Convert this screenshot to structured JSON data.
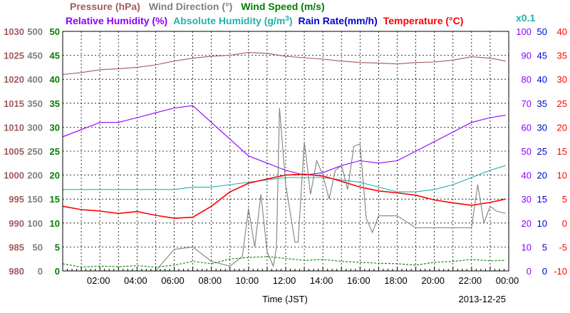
{
  "chart_data": {
    "type": "line",
    "xlabel": "Time (JST)",
    "date_label": "2013-12-25",
    "x_ticks": [
      "02:00",
      "04:00",
      "06:00",
      "08:00",
      "10:00",
      "12:00",
      "14:00",
      "16:00",
      "18:00",
      "20:00",
      "22:00",
      "00:00"
    ],
    "xlim": [
      "2013-12-25 00:00",
      "2013-12-26 00:00"
    ],
    "legend_row1": [
      {
        "text": "Pressure (hPa)",
        "color": "#a05c5c"
      },
      {
        "text": "Wind Direction (°)",
        "color": "#808080"
      },
      {
        "text": "Wind Speed (m/s)",
        "color": "#008000"
      }
    ],
    "legend_row2": [
      {
        "text": "Relative Humidity (%)",
        "color": "#8b00ff"
      },
      {
        "text": "Absolute Humidity (g/m",
        "sup": "3",
        "close": ")",
        "color": "#20b2aa"
      },
      {
        "text": "Rain Rate(mm/h)",
        "color": "#0000cd"
      },
      {
        "text": "Temperature (°C)",
        "color": "#ff0000"
      }
    ],
    "scale_note": {
      "text": "x0.1",
      "color": "#20b2aa"
    },
    "axes": {
      "pressure": {
        "ylim": [
          980,
          1030
        ],
        "ticks": [
          "1030",
          "1025",
          "1020",
          "1015",
          "1010",
          "1005",
          "1000",
          "995",
          "990",
          "985",
          "980"
        ],
        "color": "#a05c5c"
      },
      "wind_direction": {
        "ylim": [
          0,
          500
        ],
        "ticks": [
          "500",
          "450",
          "400",
          "350",
          "300",
          "250",
          "200",
          "150",
          "100",
          "50",
          "0"
        ],
        "color": "#808080"
      },
      "wind_speed": {
        "ylim": [
          0,
          50
        ],
        "ticks": [
          "50",
          "45",
          "40",
          "35",
          "30",
          "25",
          "20",
          "15",
          "10",
          "5",
          "0"
        ],
        "color": "#008000"
      },
      "relative_humidity": {
        "ylim": [
          0,
          100
        ],
        "ticks": [
          "100",
          "90",
          "80",
          "70",
          "60",
          "50",
          "40",
          "30",
          "20",
          "10",
          "0"
        ],
        "color": "#8b00ff"
      },
      "rain_rate": {
        "ylim": [
          0,
          50
        ],
        "ticks": [
          "50",
          "45",
          "40",
          "35",
          "30",
          "25",
          "20",
          "15",
          "10",
          "5",
          "0"
        ],
        "color": "#0000cd"
      },
      "temperature": {
        "ylim": [
          -10,
          40
        ],
        "ticks": [
          "40",
          "35",
          "30",
          "25",
          "20",
          "15",
          "10",
          "5",
          "0",
          "-5",
          "-10"
        ],
        "color": "#ff0000"
      }
    },
    "series": [
      {
        "name": "Pressure (hPa)",
        "axis": "pressure",
        "color": "#a05c5c",
        "style": "solid",
        "x": [
          "00:00",
          "01:00",
          "02:00",
          "03:00",
          "04:00",
          "05:00",
          "06:00",
          "07:00",
          "08:00",
          "09:00",
          "10:00",
          "11:00",
          "12:00",
          "13:00",
          "14:00",
          "15:00",
          "16:00",
          "17:00",
          "18:00",
          "19:00",
          "20:00",
          "21:00",
          "22:00",
          "23:00",
          "23:50"
        ],
        "values": [
          1021.0,
          1021.4,
          1022.0,
          1022.2,
          1022.5,
          1023.0,
          1023.8,
          1024.4,
          1024.8,
          1025.0,
          1025.6,
          1025.4,
          1024.8,
          1024.5,
          1024.2,
          1023.8,
          1023.5,
          1023.4,
          1023.2,
          1023.5,
          1023.6,
          1024.0,
          1024.7,
          1024.4,
          1023.8
        ]
      },
      {
        "name": "Relative Humidity (%)",
        "axis": "relative_humidity",
        "color": "#8b00ff",
        "style": "solid",
        "x": [
          "00:00",
          "01:00",
          "02:00",
          "03:00",
          "04:00",
          "05:00",
          "06:00",
          "07:00",
          "08:00",
          "09:00",
          "10:00",
          "11:00",
          "12:00",
          "13:00",
          "14:00",
          "15:00",
          "16:00",
          "17:00",
          "18:00",
          "19:00",
          "20:00",
          "21:00",
          "22:00",
          "23:00",
          "23:50"
        ],
        "values": [
          56,
          59,
          62,
          62,
          64,
          66,
          68,
          69,
          62,
          55,
          48,
          45,
          42,
          40,
          41,
          44,
          46,
          45,
          46,
          50,
          54,
          58,
          62,
          64,
          65
        ]
      },
      {
        "name": "Absolute Humidity",
        "axis": "relative_humidity",
        "color": "#20b2aa",
        "style": "solid",
        "x": [
          "00:00",
          "01:00",
          "02:00",
          "03:00",
          "04:00",
          "05:00",
          "06:00",
          "07:00",
          "08:00",
          "09:00",
          "10:00",
          "11:00",
          "12:00",
          "13:00",
          "14:00",
          "15:00",
          "16:00",
          "17:00",
          "18:00",
          "19:00",
          "20:00",
          "21:00",
          "22:00",
          "23:00",
          "23:50"
        ],
        "values": [
          34,
          34,
          34,
          34,
          34,
          34,
          34,
          35,
          35,
          36,
          37,
          38,
          39,
          39,
          39,
          38,
          37,
          35,
          33,
          33,
          34,
          36,
          39,
          42,
          44
        ]
      },
      {
        "name": "Temperature (°C)",
        "axis": "temperature",
        "color": "#ff0000",
        "style": "solid",
        "x": [
          "00:00",
          "01:00",
          "02:00",
          "03:00",
          "04:00",
          "05:00",
          "06:00",
          "07:00",
          "08:00",
          "09:00",
          "10:00",
          "11:00",
          "12:00",
          "13:00",
          "14:00",
          "15:00",
          "16:00",
          "17:00",
          "18:00",
          "19:00",
          "20:00",
          "21:00",
          "22:00",
          "23:00",
          "23:50"
        ],
        "values": [
          3.5,
          2.8,
          2.5,
          2.0,
          2.4,
          1.6,
          1.0,
          1.2,
          3.5,
          6.5,
          8.3,
          9.2,
          10.0,
          10.2,
          9.8,
          8.7,
          7.5,
          6.7,
          6.3,
          5.8,
          4.8,
          4.2,
          3.7,
          4.3,
          5.0
        ]
      },
      {
        "name": "Wind Direction (°)",
        "axis": "wind_direction",
        "color": "#808080",
        "style": "solid",
        "x": [
          "00:00",
          "01:00",
          "02:00",
          "03:00",
          "04:00",
          "05:00",
          "06:00",
          "07:00",
          "08:00",
          "09:00",
          "09:40",
          "10:00",
          "10:20",
          "10:40",
          "11:00",
          "11:20",
          "11:30",
          "11:40",
          "12:00",
          "12:20",
          "12:30",
          "12:40",
          "13:00",
          "13:20",
          "13:40",
          "14:00",
          "14:20",
          "14:40",
          "15:00",
          "15:20",
          "15:40",
          "16:00",
          "16:20",
          "16:40",
          "17:00",
          "18:00",
          "19:00",
          "20:00",
          "21:00",
          "22:00",
          "22:20",
          "22:40",
          "23:00",
          "23:20",
          "23:50"
        ],
        "values": [
          0,
          0,
          0,
          0,
          0,
          0,
          45,
          50,
          20,
          10,
          30,
          130,
          50,
          160,
          40,
          10,
          50,
          340,
          180,
          100,
          60,
          60,
          270,
          160,
          230,
          200,
          150,
          210,
          220,
          170,
          260,
          265,
          110,
          80,
          115,
          115,
          90,
          90,
          90,
          90,
          180,
          100,
          135,
          125,
          120
        ]
      },
      {
        "name": "Wind Speed (m/s)",
        "axis": "wind_speed",
        "color": "#008000",
        "style": "dashed",
        "x": [
          "00:00",
          "01:00",
          "02:00",
          "03:00",
          "04:00",
          "05:00",
          "06:00",
          "07:00",
          "08:00",
          "09:00",
          "10:00",
          "11:00",
          "12:00",
          "13:00",
          "14:00",
          "15:00",
          "16:00",
          "17:00",
          "18:00",
          "19:00",
          "20:00",
          "21:00",
          "22:00",
          "23:00",
          "23:50"
        ],
        "values": [
          1.5,
          0.8,
          1.0,
          0.9,
          1.1,
          0.8,
          1.2,
          2.0,
          1.5,
          2.5,
          2.8,
          3.0,
          2.6,
          2.2,
          2.4,
          2.0,
          1.8,
          1.6,
          1.5,
          1.2,
          1.8,
          2.0,
          2.4,
          2.1,
          2.2
        ]
      },
      {
        "name": "Rain Rate(mm/h)",
        "axis": "rain_rate",
        "color": "#0000cd",
        "style": "solid",
        "x": [
          "00:00",
          "23:50"
        ],
        "values": [
          0,
          0
        ]
      }
    ],
    "grid": true
  }
}
